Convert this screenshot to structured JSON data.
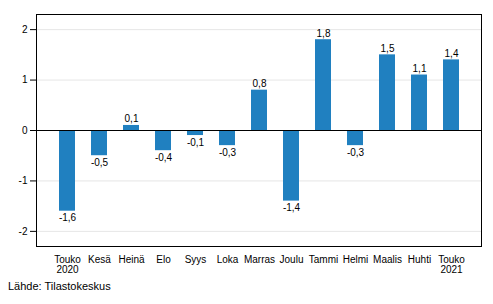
{
  "chart_data": {
    "type": "bar",
    "categories": [
      "Touko\n2020",
      "Kesä",
      "Heinä",
      "Elo",
      "Syys",
      "Loka",
      "Marras",
      "Joulu",
      "Tammi",
      "Helmi",
      "Maalis",
      "Huhti",
      "Touko\n2021"
    ],
    "values": [
      -1.6,
      -0.5,
      0.1,
      -0.4,
      -0.1,
      -0.3,
      0.8,
      -1.4,
      1.8,
      -0.3,
      1.5,
      1.1,
      1.4
    ],
    "value_labels": [
      "-1,6",
      "-0,5",
      "0,1",
      "-0,4",
      "-0,1",
      "-0,3",
      "0,8",
      "-1,4",
      "1,8",
      "-0,3",
      "1,5",
      "1,1",
      "1,4"
    ],
    "color": "#2080c0",
    "ylim": [
      -2.3,
      2.3
    ],
    "yticks": [
      -2,
      -1,
      0,
      1,
      2
    ],
    "grid": true,
    "data_labels": true,
    "annotations": [
      "Lähde: Tilastokeskus"
    ]
  }
}
